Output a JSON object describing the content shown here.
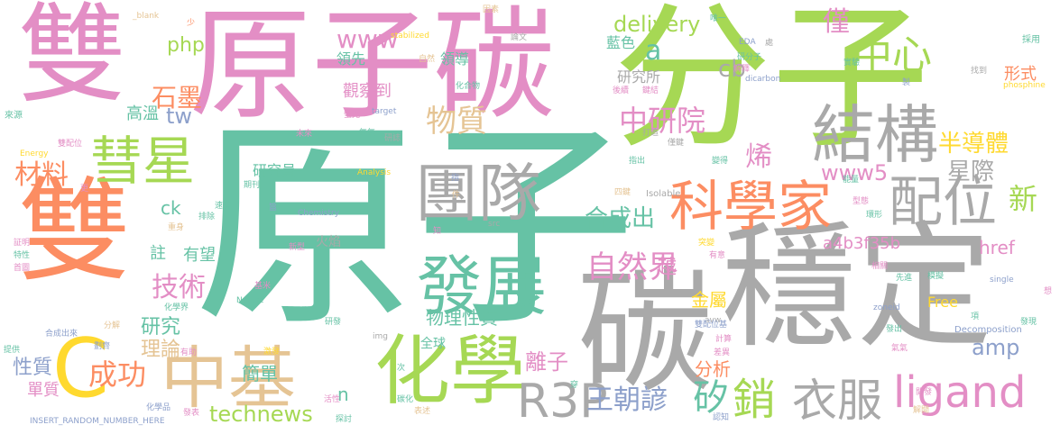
{
  "palette": {
    "pink": "#e38ec5",
    "green": "#a6d854",
    "teal": "#66c2a5",
    "gray": "#a9a9a9",
    "orange": "#fc8d62",
    "blue": "#8da0cb",
    "yellow": "#ffd92f",
    "tan": "#e5c494"
  },
  "words": [
    {
      "text": "雙",
      "color": "pink",
      "rotate": 0
    },
    {
      "text": "雙",
      "color": "orange",
      "rotate": 0
    },
    {
      "text": "原子碳",
      "color": "pink",
      "rotate": 0
    },
    {
      "text": "分子",
      "color": "green",
      "rotate": 0
    },
    {
      "text": "原子",
      "color": "teal",
      "rotate": 0
    },
    {
      "text": "碳",
      "color": "gray",
      "rotate": 0
    },
    {
      "text": "穩定",
      "color": "gray",
      "rotate": 0
    },
    {
      "text": "團隊",
      "color": "gray",
      "rotate": 0
    },
    {
      "text": "結構",
      "color": "gray",
      "rotate": 0
    },
    {
      "text": "化學",
      "color": "green",
      "rotate": 0
    },
    {
      "text": "彗星",
      "color": "green",
      "rotate": 0
    },
    {
      "text": "配位",
      "color": "gray",
      "rotate": 0
    },
    {
      "text": "科學家",
      "color": "orange",
      "rotate": 0
    },
    {
      "text": "發展",
      "color": "teal",
      "rotate": 0
    },
    {
      "text": "中基",
      "color": "tan",
      "rotate": 0
    },
    {
      "text": "C",
      "color": "yellow",
      "rotate": 0
    },
    {
      "text": "中心",
      "color": "green",
      "rotate": 0
    },
    {
      "text": "R3P",
      "color": "gray",
      "rotate": 0
    },
    {
      "text": "ligand",
      "color": "pink",
      "rotate": 0
    },
    {
      "text": "衣服",
      "color": "gray",
      "rotate": 0
    },
    {
      "text": "銷",
      "color": "green",
      "rotate": 0
    },
    {
      "text": "矽",
      "color": "teal",
      "rotate": 0
    },
    {
      "text": "王朝諺",
      "color": "blue",
      "rotate": 0
    },
    {
      "text": "technews",
      "color": "green",
      "rotate": 0
    },
    {
      "text": "成功",
      "color": "orange",
      "rotate": 0
    },
    {
      "text": "材料",
      "color": "orange",
      "rotate": 0
    },
    {
      "text": "中研院",
      "color": "pink",
      "rotate": 0
    },
    {
      "text": "物質",
      "color": "tan",
      "rotate": 0
    },
    {
      "text": "石墨",
      "color": "orange",
      "rotate": 0
    },
    {
      "text": "半導體",
      "color": "yellow",
      "rotate": 0
    },
    {
      "text": "星際",
      "color": "gray",
      "rotate": 0
    },
    {
      "text": "新",
      "color": "green",
      "rotate": 0
    },
    {
      "text": "合成出",
      "color": "teal",
      "rotate": 0
    },
    {
      "text": "自然界",
      "color": "pink",
      "rotate": 0
    },
    {
      "text": "技術",
      "color": "pink",
      "rotate": 0
    },
    {
      "text": "www",
      "color": "pink",
      "rotate": 0
    },
    {
      "text": "www5",
      "color": "pink",
      "rotate": 0
    },
    {
      "text": "delivery",
      "color": "green",
      "rotate": 0
    },
    {
      "text": "php",
      "color": "green",
      "rotate": 0
    },
    {
      "text": "tw",
      "color": "blue",
      "rotate": 0
    },
    {
      "text": "a",
      "color": "teal",
      "rotate": 0
    },
    {
      "text": "cb",
      "color": "gray",
      "rotate": 0
    },
    {
      "text": "僅",
      "color": "pink",
      "rotate": 0
    },
    {
      "text": "烯",
      "color": "pink",
      "rotate": 0
    },
    {
      "text": "高溫",
      "color": "teal",
      "rotate": 0
    },
    {
      "text": "研究所",
      "color": "gray",
      "rotate": 0
    },
    {
      "text": "觀察到",
      "color": "pink",
      "rotate": 0
    },
    {
      "text": "藍色",
      "color": "teal",
      "rotate": 0
    },
    {
      "text": "形式",
      "color": "orange",
      "rotate": 0
    },
    {
      "text": "amp",
      "color": "blue",
      "rotate": 0
    },
    {
      "text": "離子",
      "color": "pink",
      "rotate": 0
    },
    {
      "text": "研究",
      "color": "teal",
      "rotate": 0
    },
    {
      "text": "理論",
      "color": "tan",
      "rotate": 0
    },
    {
      "text": "性質",
      "color": "blue",
      "rotate": 0
    },
    {
      "text": "單質",
      "color": "pink",
      "rotate": 0
    },
    {
      "text": "簡單",
      "color": "teal",
      "rotate": 0
    },
    {
      "text": "分析",
      "color": "orange",
      "rotate": 0
    },
    {
      "text": "金屬",
      "color": "yellow",
      "rotate": 0
    },
    {
      "text": "物理性質",
      "color": "teal",
      "rotate": 0
    },
    {
      "text": "越",
      "color": "pink",
      "rotate": 0
    },
    {
      "text": "有望",
      "color": "teal",
      "rotate": 0
    },
    {
      "text": "註",
      "color": "teal",
      "rotate": 0
    },
    {
      "text": "ck",
      "color": "teal",
      "rotate": 0
    },
    {
      "text": "火焰",
      "color": "gray",
      "rotate": 0
    },
    {
      "text": "研究員",
      "color": "teal",
      "rotate": 0
    },
    {
      "text": "a4b3f35b",
      "color": "pink",
      "rotate": 0
    },
    {
      "text": "href",
      "color": "pink",
      "rotate": 0
    },
    {
      "text": "Free",
      "color": "yellow",
      "rotate": 0
    },
    {
      "text": "n",
      "color": "teal",
      "rotate": 0
    },
    {
      "text": "全球",
      "color": "teal",
      "rotate": 0
    },
    {
      "text": "領先",
      "color": "teal",
      "rotate": 0
    },
    {
      "text": "領導",
      "color": "teal",
      "rotate": 0
    },
    {
      "text": "Chemistry",
      "color": "blue",
      "rotate": 0
    },
    {
      "text": "Analysis",
      "color": "yellow",
      "rotate": 0
    },
    {
      "text": "Decomposition",
      "color": "blue",
      "rotate": 0
    },
    {
      "text": "Isolable",
      "color": "gray",
      "rotate": 0
    },
    {
      "text": "INSERT_RANDOM_NUMBER_HERE",
      "color": "blue",
      "rotate": 0
    },
    {
      "text": "_blank",
      "color": "tan",
      "rotate": 0
    },
    {
      "text": "stabilized",
      "color": "yellow",
      "rotate": 0
    },
    {
      "text": "EDA",
      "color": "blue",
      "rotate": 0
    },
    {
      "text": "dicarbon",
      "color": "blue",
      "rotate": 0
    },
    {
      "text": "phosphine",
      "color": "yellow",
      "rotate": 0
    },
    {
      "text": "single",
      "color": "blue",
      "rotate": 0
    },
    {
      "text": "zoneid",
      "color": "blue",
      "rotate": 0
    },
    {
      "text": "Nature",
      "color": "teal",
      "rotate": 0
    },
    {
      "text": "Energy",
      "color": "yellow",
      "rotate": 0
    },
    {
      "text": "target",
      "color": "blue",
      "rotate": 0
    },
    {
      "text": "img",
      "color": "gray",
      "rotate": 0
    },
    {
      "text": "src",
      "color": "gray",
      "rotate": 0
    },
    {
      "text": "avw",
      "color": "gray",
      "rotate": 0
    },
    {
      "text": "來源",
      "color": "teal",
      "rotate": 0
    },
    {
      "text": "氣氣",
      "color": "teal",
      "rotate": 0
    },
    {
      "text": "自然",
      "color": "tan",
      "rotate": 0
    },
    {
      "text": "化合物",
      "color": "teal",
      "rotate": 0
    },
    {
      "text": "研分子",
      "color": "teal",
      "rotate": 0
    },
    {
      "text": "採用",
      "color": "teal",
      "rotate": 0
    },
    {
      "text": "實驗",
      "color": "teal",
      "rotate": 0
    },
    {
      "text": "相關",
      "color": "pink",
      "rotate": 0
    },
    {
      "text": "合成出來",
      "color": "blue",
      "rotate": 0
    },
    {
      "text": "化學品",
      "color": "blue",
      "rotate": 0
    },
    {
      "text": "探討",
      "color": "teal",
      "rotate": 0
    },
    {
      "text": "發表",
      "color": "pink",
      "rotate": 0
    },
    {
      "text": "認知",
      "color": "blue",
      "rotate": 0
    },
    {
      "text": "解開",
      "color": "tan",
      "rotate": 0
    },
    {
      "text": "變得",
      "color": "teal",
      "rotate": 0
    },
    {
      "text": "能量",
      "color": "teal",
      "rotate": 0
    },
    {
      "text": "打造",
      "color": "gray",
      "rotate": 0
    },
    {
      "text": "指出",
      "color": "teal",
      "rotate": 0
    },
    {
      "text": "僅鍵",
      "color": "gray",
      "rotate": 0
    },
    {
      "text": "四鍵",
      "color": "tan",
      "rotate": 0
    },
    {
      "text": "後續",
      "color": "pink",
      "rotate": 0
    },
    {
      "text": "鍵結",
      "color": "pink",
      "rotate": 0
    },
    {
      "text": "解釋",
      "color": "pink",
      "rotate": 0
    },
    {
      "text": "找到",
      "color": "gray",
      "rotate": 0
    },
    {
      "text": "唯一",
      "color": "teal",
      "rotate": 0
    },
    {
      "text": "突變",
      "color": "yellow",
      "rotate": 0
    },
    {
      "text": "有意",
      "color": "pink",
      "rotate": 0
    },
    {
      "text": "計算",
      "color": "pink",
      "rotate": 0
    },
    {
      "text": "差異",
      "color": "pink",
      "rotate": 0
    },
    {
      "text": "發出",
      "color": "teal",
      "rotate": 0
    },
    {
      "text": "模擬",
      "color": "teal",
      "rotate": 0
    },
    {
      "text": "先進",
      "color": "teal",
      "rotate": 0
    },
    {
      "text": "發現",
      "color": "teal",
      "rotate": 0
    },
    {
      "text": "氣氣",
      "color": "pink",
      "rotate": 0
    },
    {
      "text": "提供",
      "color": "teal",
      "rotate": 0
    },
    {
      "text": "分解",
      "color": "tan",
      "rotate": 0
    },
    {
      "text": "劃齊",
      "color": "blue",
      "rotate": 0
    },
    {
      "text": "雙配位",
      "color": "pink",
      "rotate": 0
    },
    {
      "text": "雙配位基",
      "color": "blue",
      "rotate": 0
    },
    {
      "text": "特性",
      "color": "teal",
      "rotate": 0
    },
    {
      "text": "首圖",
      "color": "pink",
      "rotate": 0
    },
    {
      "text": "証明",
      "color": "pink",
      "rotate": 0
    },
    {
      "text": "排除",
      "color": "teal",
      "rotate": 0
    },
    {
      "text": "速度",
      "color": "teal",
      "rotate": 0
    },
    {
      "text": "重身",
      "color": "tan",
      "rotate": 0
    },
    {
      "text": "期刊",
      "color": "teal",
      "rotate": 0
    },
    {
      "text": "旨",
      "color": "blue",
      "rotate": 0
    },
    {
      "text": "新型",
      "color": "pink",
      "rotate": 0
    },
    {
      "text": "基米",
      "color": "pink",
      "rotate": 0
    },
    {
      "text": "化學界",
      "color": "teal",
      "rotate": 0
    },
    {
      "text": "有助",
      "color": "pink",
      "rotate": 0
    },
    {
      "text": "激發",
      "color": "yellow",
      "rotate": 0
    },
    {
      "text": "研發",
      "color": "teal",
      "rotate": 0
    },
    {
      "text": "活性",
      "color": "pink",
      "rotate": 0
    },
    {
      "text": "碳化",
      "color": "teal",
      "rotate": 0
    },
    {
      "text": "表述",
      "color": "tan",
      "rotate": 0
    },
    {
      "text": "未來",
      "color": "pink",
      "rotate": 0
    },
    {
      "text": "螢光",
      "color": "pink",
      "rotate": 0
    },
    {
      "text": "研誌",
      "color": "gray",
      "rotate": 0
    },
    {
      "text": "因素",
      "color": "tan",
      "rotate": 0
    },
    {
      "text": "論文",
      "color": "gray",
      "rotate": 0
    },
    {
      "text": "處",
      "color": "gray",
      "rotate": 0
    },
    {
      "text": "少",
      "color": "orange",
      "rotate": 0
    },
    {
      "text": "更",
      "color": "pink",
      "rotate": 0
    },
    {
      "text": "項",
      "color": "teal",
      "rotate": 0
    },
    {
      "text": "想",
      "color": "pink",
      "rotate": 0
    },
    {
      "text": "指",
      "color": "blue",
      "rotate": 0
    },
    {
      "text": "件",
      "color": "tan",
      "rotate": 0
    },
    {
      "text": "知",
      "color": "pink",
      "rotate": 0
    },
    {
      "text": "穿",
      "color": "teal",
      "rotate": 0
    },
    {
      "text": "次",
      "color": "teal",
      "rotate": 0
    },
    {
      "text": "製",
      "color": "blue",
      "rotate": 0
    },
    {
      "text": "型態",
      "color": "pink",
      "rotate": 0
    },
    {
      "text": "環形",
      "color": "teal",
      "rotate": 0
    },
    {
      "text": "開發",
      "color": "pink",
      "rotate": 0
    }
  ]
}
